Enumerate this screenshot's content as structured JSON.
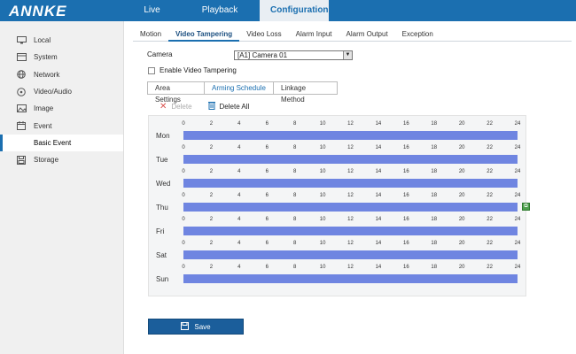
{
  "brand": "ANNKE",
  "topnav": [
    {
      "label": "Live View"
    },
    {
      "label": "Playback"
    },
    {
      "label": "Configuration"
    }
  ],
  "sidebar": {
    "items": [
      {
        "label": "Local",
        "icon": "monitor-icon"
      },
      {
        "label": "System",
        "icon": "system-icon"
      },
      {
        "label": "Network",
        "icon": "globe-icon"
      },
      {
        "label": "Video/Audio",
        "icon": "video-icon"
      },
      {
        "label": "Image",
        "icon": "image-icon"
      },
      {
        "label": "Event",
        "icon": "calendar-icon"
      },
      {
        "label": "Basic Event",
        "icon": ""
      },
      {
        "label": "Storage",
        "icon": "storage-icon"
      }
    ]
  },
  "subtabs": [
    "Motion",
    "Video Tampering",
    "Video Loss",
    "Alarm Input",
    "Alarm Output",
    "Exception"
  ],
  "camera": {
    "label": "Camera",
    "value": "[A1] Camera 01"
  },
  "enable": {
    "label": "Enable Video Tampering",
    "checked": false
  },
  "steps": [
    "Area Settings",
    "Arming Schedule",
    "Linkage Method"
  ],
  "actions": {
    "delete": "Delete",
    "delete_all": "Delete All"
  },
  "schedule": {
    "days": [
      "Mon",
      "Tue",
      "Wed",
      "Thu",
      "Fri",
      "Sat",
      "Sun"
    ],
    "ticks": [
      "0",
      "2",
      "4",
      "6",
      "8",
      "10",
      "12",
      "14",
      "16",
      "18",
      "20",
      "22",
      "24"
    ],
    "bar_color": "#6f85e1"
  },
  "save_label": "Save",
  "colors": {
    "accent": "#1b6fb0"
  }
}
